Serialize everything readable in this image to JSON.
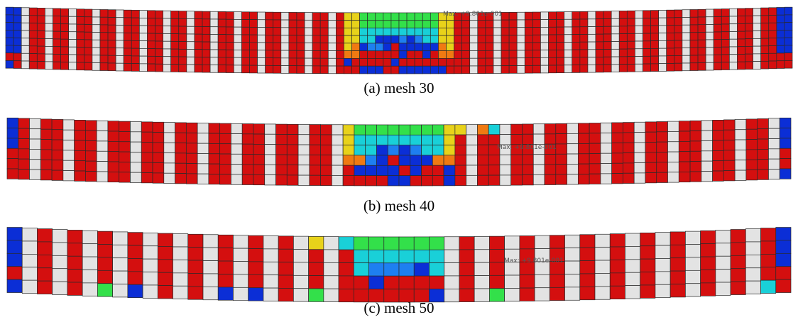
{
  "panels": [
    {
      "caption": "(a) mesh 30",
      "max_label": "Max: +9.801e-001"
    },
    {
      "caption": "(b) mesh 40",
      "max_label": "Max: +9.801e-001"
    },
    {
      "caption": "(c) mesh 50",
      "max_label": "Max: +9.801e-001"
    }
  ]
}
